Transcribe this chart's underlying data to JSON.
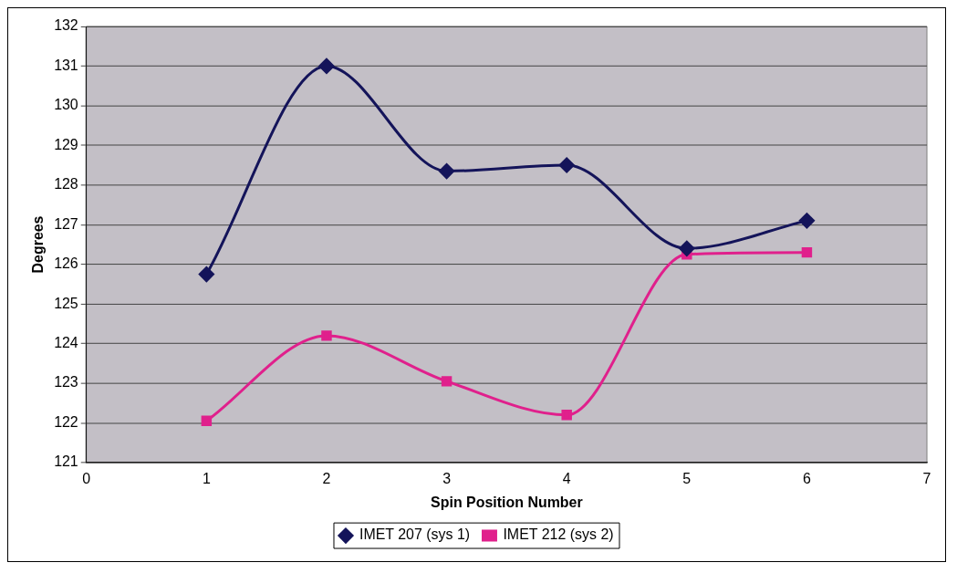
{
  "chart_data": {
    "type": "line",
    "xlabel": "Spin Position Number",
    "ylabel": "Degrees",
    "x": [
      1,
      2,
      3,
      4,
      5,
      6
    ],
    "series": [
      {
        "name": "IMET 207 (sys 1)",
        "color": "#14145a",
        "marker": "diamond",
        "values": [
          125.75,
          131.0,
          128.35,
          128.5,
          126.4,
          127.1
        ]
      },
      {
        "name": "IMET 212 (sys 2)",
        "color": "#e0208c",
        "marker": "square",
        "values": [
          122.05,
          124.2,
          123.05,
          122.2,
          126.25,
          126.3
        ]
      }
    ],
    "xlim": [
      0,
      7
    ],
    "xticks": [
      0,
      1,
      2,
      3,
      4,
      5,
      6,
      7
    ],
    "ylim": [
      121,
      132
    ],
    "yticks": [
      121,
      122,
      123,
      124,
      125,
      126,
      127,
      128,
      129,
      130,
      131,
      132
    ],
    "grid": "y",
    "legend": "bottom"
  }
}
